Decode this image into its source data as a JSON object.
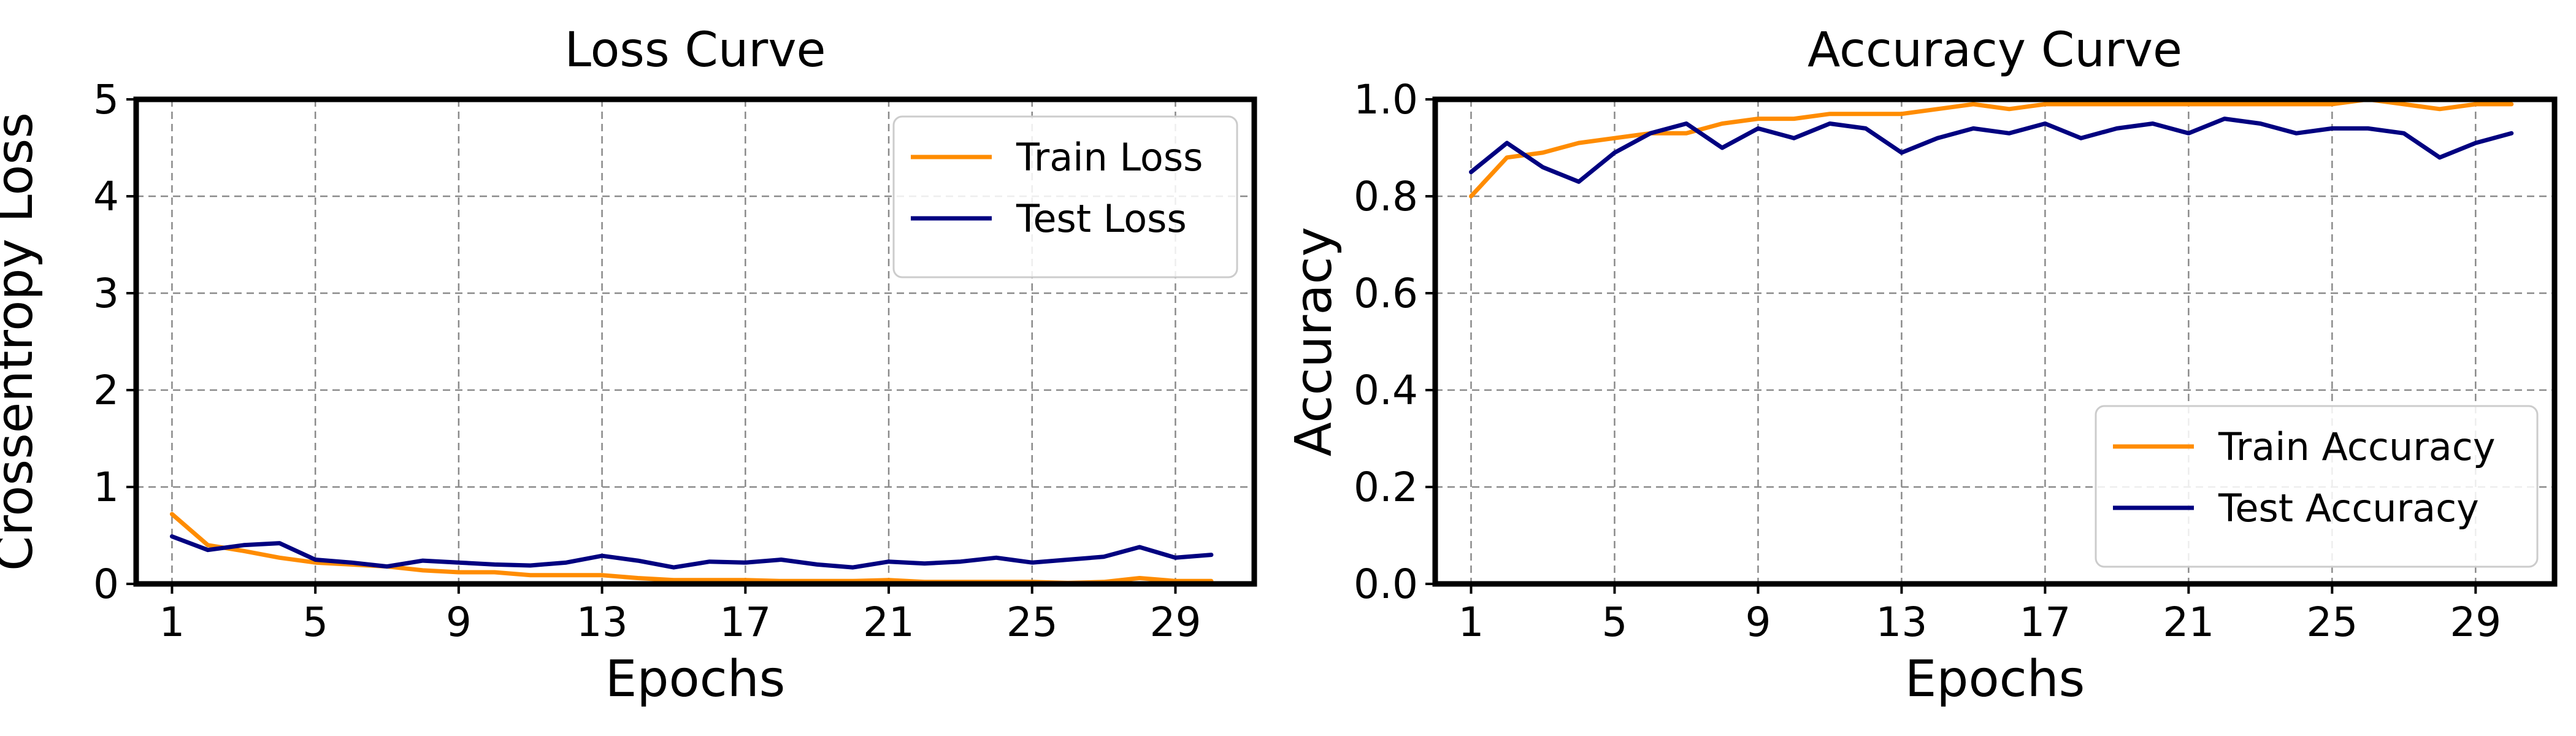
{
  "colors": {
    "train": "#ff8c00",
    "test": "#000080"
  },
  "chart_data": [
    {
      "type": "line",
      "title": "Loss Curve",
      "xlabel": "Epochs",
      "ylabel": "Crossentropy Loss",
      "xlim": [
        0,
        31.2
      ],
      "ylim": [
        0,
        5
      ],
      "xticks": [
        1,
        5,
        9,
        13,
        17,
        21,
        25,
        29
      ],
      "yticks": [
        0,
        1,
        2,
        3,
        4,
        5
      ],
      "ytick_labels": [
        "0",
        "1",
        "2",
        "3",
        "4",
        "5"
      ],
      "grid": true,
      "legend_position": "upper right",
      "x": [
        1,
        2,
        3,
        4,
        5,
        6,
        7,
        8,
        9,
        10,
        11,
        12,
        13,
        14,
        15,
        16,
        17,
        18,
        19,
        20,
        21,
        22,
        23,
        24,
        25,
        26,
        27,
        28,
        29,
        30
      ],
      "series": [
        {
          "name": "Train Loss",
          "color_key": "train",
          "values": [
            0.72,
            0.4,
            0.34,
            0.27,
            0.22,
            0.2,
            0.18,
            0.14,
            0.12,
            0.12,
            0.09,
            0.09,
            0.09,
            0.06,
            0.04,
            0.04,
            0.04,
            0.03,
            0.03,
            0.03,
            0.04,
            0.02,
            0.02,
            0.02,
            0.02,
            0.01,
            0.02,
            0.06,
            0.03,
            0.03
          ]
        },
        {
          "name": "Test Loss",
          "color_key": "test",
          "values": [
            0.49,
            0.35,
            0.4,
            0.42,
            0.25,
            0.22,
            0.18,
            0.24,
            0.22,
            0.2,
            0.19,
            0.22,
            0.29,
            0.24,
            0.17,
            0.23,
            0.22,
            0.25,
            0.2,
            0.17,
            0.23,
            0.21,
            0.23,
            0.27,
            0.22,
            0.25,
            0.28,
            0.38,
            0.27,
            0.3
          ]
        }
      ]
    },
    {
      "type": "line",
      "title": "Accuracy Curve",
      "xlabel": "Epochs",
      "ylabel": "Accuracy",
      "xlim": [
        0,
        31.2
      ],
      "ylim": [
        0,
        1
      ],
      "xticks": [
        1,
        5,
        9,
        13,
        17,
        21,
        25,
        29
      ],
      "yticks": [
        0,
        0.2,
        0.4,
        0.6,
        0.8,
        1.0
      ],
      "ytick_labels": [
        "0.0",
        "0.2",
        "0.4",
        "0.6",
        "0.8",
        "1.0"
      ],
      "grid": true,
      "legend_position": "lower right",
      "x": [
        1,
        2,
        3,
        4,
        5,
        6,
        7,
        8,
        9,
        10,
        11,
        12,
        13,
        14,
        15,
        16,
        17,
        18,
        19,
        20,
        21,
        22,
        23,
        24,
        25,
        26,
        27,
        28,
        29,
        30
      ],
      "series": [
        {
          "name": "Train Accuracy",
          "color_key": "train",
          "values": [
            0.8,
            0.88,
            0.89,
            0.91,
            0.92,
            0.93,
            0.93,
            0.95,
            0.96,
            0.96,
            0.97,
            0.97,
            0.97,
            0.98,
            0.99,
            0.98,
            0.99,
            0.99,
            0.99,
            0.99,
            0.99,
            0.99,
            0.99,
            0.99,
            0.99,
            1.0,
            0.99,
            0.98,
            0.99,
            0.99
          ]
        },
        {
          "name": "Test Accuracy",
          "color_key": "test",
          "values": [
            0.85,
            0.91,
            0.86,
            0.83,
            0.89,
            0.93,
            0.95,
            0.9,
            0.94,
            0.92,
            0.95,
            0.94,
            0.89,
            0.92,
            0.94,
            0.93,
            0.95,
            0.92,
            0.94,
            0.95,
            0.93,
            0.96,
            0.95,
            0.93,
            0.94,
            0.94,
            0.93,
            0.88,
            0.91,
            0.93
          ]
        }
      ]
    }
  ]
}
